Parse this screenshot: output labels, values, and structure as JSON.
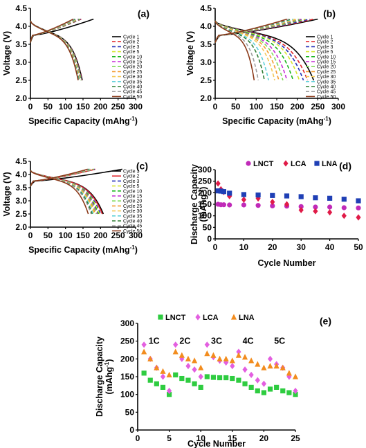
{
  "chart_data": [
    {
      "id": "a",
      "panel_label": "(a)",
      "type": "line",
      "xlabel": "Specific Capacity (mAhg",
      "xlabel_sup": "-1",
      "xlabel_end": ")",
      "ylabel": "Voltage (V)",
      "xlim": [
        0,
        300
      ],
      "ylim": [
        2.0,
        4.5
      ],
      "xticks": [
        "0",
        "50",
        "100",
        "150",
        "200",
        "250",
        "300"
      ],
      "yticks": [
        "2.0",
        "2.5",
        "3.0",
        "3.5",
        "4.0",
        "4.5"
      ],
      "charge_end_capacity": [
        180,
        145,
        143,
        141,
        139,
        137,
        135,
        133,
        131,
        129,
        127,
        125,
        122
      ],
      "discharge_capacity": [
        148,
        147,
        146,
        145,
        144,
        143,
        142,
        141,
        140,
        139,
        138,
        137,
        136
      ],
      "series": [
        {
          "name": "Cycle 1",
          "color": "#000000",
          "style": "solid"
        },
        {
          "name": "Cycle 2",
          "color": "#e0262b",
          "style": "dash"
        },
        {
          "name": "Cycle 3",
          "color": "#2431b8",
          "style": "dash"
        },
        {
          "name": "Cycle 5",
          "color": "#d6e632",
          "style": "dash"
        },
        {
          "name": "Cycle 10",
          "color": "#18b51b",
          "style": "dash"
        },
        {
          "name": "Cycle 15",
          "color": "#c62ad6",
          "style": "dash"
        },
        {
          "name": "Cycle 20",
          "color": "#7ed957",
          "style": "dash"
        },
        {
          "name": "Cycle 25",
          "color": "#f39b2e",
          "style": "dash"
        },
        {
          "name": "Cycle 30",
          "color": "#f4c95a",
          "style": "dash"
        },
        {
          "name": "Cycle 35",
          "color": "#5fd1d9",
          "style": "dash"
        },
        {
          "name": "Cycle 40",
          "color": "#2e7d32",
          "style": "dash"
        },
        {
          "name": "Cycle 45",
          "color": "#9e9e9e",
          "style": "dash"
        },
        {
          "name": "Cycle 50",
          "color": "#8b3a1a",
          "style": "solid"
        }
      ]
    },
    {
      "id": "b",
      "panel_label": "(b)",
      "type": "line",
      "xlabel": "Specific Capacity (mAhg",
      "xlabel_sup": "-1",
      "xlabel_end": ")",
      "ylabel": "Voltage (V)",
      "xlim": [
        0,
        300
      ],
      "ylim": [
        2.0,
        4.5
      ],
      "xticks": [
        "0",
        "50",
        "100",
        "150",
        "200",
        "250",
        "300"
      ],
      "yticks": [
        "2.0",
        "2.5",
        "3.0",
        "3.5",
        "4.0",
        "4.5"
      ],
      "charge_end_capacity": [
        250,
        240,
        230,
        220,
        215,
        210,
        205,
        200,
        195,
        190,
        185,
        180,
        175
      ],
      "discharge_capacity": [
        240,
        225,
        215,
        205,
        190,
        175,
        165,
        155,
        145,
        130,
        120,
        105,
        95
      ],
      "series": [
        {
          "name": "Cycle 1",
          "color": "#000000",
          "style": "solid"
        },
        {
          "name": "Cycle 2",
          "color": "#e0262b",
          "style": "dash"
        },
        {
          "name": "Cycle 3",
          "color": "#2431b8",
          "style": "dash"
        },
        {
          "name": "Cycle 5",
          "color": "#d6e632",
          "style": "dash"
        },
        {
          "name": "Cycle 10",
          "color": "#18b51b",
          "style": "dash"
        },
        {
          "name": "Cycle 15",
          "color": "#c62ad6",
          "style": "dash"
        },
        {
          "name": "Cycle 20",
          "color": "#7ed957",
          "style": "dash"
        },
        {
          "name": "Cycle 25",
          "color": "#f39b2e",
          "style": "dash"
        },
        {
          "name": "Cycle 30",
          "color": "#f4c95a",
          "style": "dash"
        },
        {
          "name": "Cycle 35",
          "color": "#5fd1d9",
          "style": "dash"
        },
        {
          "name": "Cycle 40",
          "color": "#2e7d32",
          "style": "dash"
        },
        {
          "name": "Cycle 45",
          "color": "#9e9e9e",
          "style": "dash"
        },
        {
          "name": "Cycle 50",
          "color": "#8b3a1a",
          "style": "solid"
        }
      ]
    },
    {
      "id": "c",
      "panel_label": "(c)",
      "type": "line",
      "xlabel": "Specific Capacity (mAhg",
      "xlabel_sup": "-1",
      "xlabel_end": ")",
      "ylabel": "Voltage (V)",
      "xlim": [
        0,
        300
      ],
      "ylim": [
        2.0,
        4.5
      ],
      "xticks": [
        "0",
        "50",
        "100",
        "150",
        "200",
        "250",
        "300"
      ],
      "yticks": [
        "2.0",
        "2.5",
        "3.0",
        "3.5",
        "4.0",
        "4.5"
      ],
      "charge_end_capacity": [
        262,
        185,
        183,
        181,
        179,
        177,
        175,
        173,
        171,
        169,
        167,
        165,
        163
      ],
      "discharge_capacity": [
        208,
        205,
        200,
        197,
        194,
        191,
        188,
        185,
        182,
        179,
        176,
        173,
        165
      ],
      "series": [
        {
          "name": "Cycle 1",
          "color": "#000000",
          "style": "solid"
        },
        {
          "name": "Cycle 2",
          "color": "#e0262b",
          "style": "solid"
        },
        {
          "name": "Cycle 3",
          "color": "#2431b8",
          "style": "dash"
        },
        {
          "name": "Cycle 5",
          "color": "#d6e632",
          "style": "dash"
        },
        {
          "name": "Cycle 10",
          "color": "#18b51b",
          "style": "dash"
        },
        {
          "name": "Cycle 15",
          "color": "#c62ad6",
          "style": "dash"
        },
        {
          "name": "Cycle 20",
          "color": "#7ed957",
          "style": "dash"
        },
        {
          "name": "Cycle 25",
          "color": "#f39b2e",
          "style": "dash"
        },
        {
          "name": "Cycle 30",
          "color": "#f4c95a",
          "style": "dash"
        },
        {
          "name": "Cycle 35",
          "color": "#5fd1d9",
          "style": "dash"
        },
        {
          "name": "Cycle 40",
          "color": "#2e7d32",
          "style": "dash"
        },
        {
          "name": "Cycle 45",
          "color": "#9e9e9e",
          "style": "dash"
        },
        {
          "name": "Cycle 50",
          "color": "#8b3a1a",
          "style": "solid"
        }
      ]
    },
    {
      "id": "d",
      "panel_label": "(d)",
      "type": "scatter",
      "xlabel": "Cycle Number",
      "ylabel": "Discharge Capacity",
      "ylabel2": "(mAhg",
      "ylabel2_sup": "-1",
      "ylabel2_end": ")",
      "xlim": [
        0,
        50
      ],
      "ylim": [
        0,
        300
      ],
      "xticks": [
        "0",
        "10",
        "20",
        "30",
        "40",
        "50"
      ],
      "yticks": [
        "0",
        "50",
        "100",
        "150",
        "200",
        "250",
        "300"
      ],
      "legend_position": "top",
      "series": [
        {
          "name": "LNCT",
          "marker": "circle",
          "color": "#c02ab8",
          "x": [
            1,
            2,
            3,
            5,
            10,
            15,
            20,
            25,
            30,
            35,
            40,
            45,
            50
          ],
          "y": [
            150,
            148,
            148,
            147,
            147,
            145,
            143,
            142,
            140,
            138,
            138,
            135,
            134
          ]
        },
        {
          "name": "LCA",
          "marker": "diamond",
          "color": "#e01b48",
          "x": [
            1,
            2,
            3,
            5,
            10,
            15,
            20,
            25,
            30,
            35,
            40,
            45,
            50
          ],
          "y": [
            240,
            215,
            203,
            185,
            170,
            175,
            160,
            150,
            125,
            120,
            115,
            100,
            93
          ]
        },
        {
          "name": "LNA",
          "marker": "square",
          "color": "#1f3fb5",
          "x": [
            1,
            2,
            3,
            5,
            10,
            15,
            20,
            25,
            30,
            35,
            40,
            45,
            50
          ],
          "y": [
            208,
            207,
            205,
            198,
            192,
            190,
            188,
            186,
            183,
            178,
            176,
            172,
            165
          ]
        }
      ]
    },
    {
      "id": "e",
      "panel_label": "(e)",
      "type": "scatter",
      "xlabel": "Cycle Number",
      "ylabel": "Discharge Capacity",
      "ylabel2": "(mAhg",
      "ylabel2_sup": "-1",
      "ylabel2_end": ")",
      "xlim": [
        0,
        25
      ],
      "ylim": [
        0,
        300
      ],
      "xticks": [
        "0",
        "5",
        "10",
        "15",
        "20",
        "25"
      ],
      "yticks": [
        "0",
        "50",
        "100",
        "150",
        "200",
        "250",
        "300"
      ],
      "legend_position": "top",
      "annotations": [
        {
          "text": "1C",
          "x": 2.6,
          "y": 250
        },
        {
          "text": "2C",
          "x": 7.5,
          "y": 250
        },
        {
          "text": "3C",
          "x": 12.5,
          "y": 250
        },
        {
          "text": "4C",
          "x": 17.5,
          "y": 250
        },
        {
          "text": "5C",
          "x": 22.5,
          "y": 250
        }
      ],
      "series": [
        {
          "name": "LNCT",
          "marker": "square",
          "color": "#2ecc40",
          "x": [
            1,
            2,
            3,
            4,
            5,
            6,
            7,
            8,
            9,
            10,
            11,
            12,
            13,
            14,
            15,
            16,
            17,
            18,
            19,
            20,
            21,
            22,
            23,
            24,
            25
          ],
          "y": [
            160,
            140,
            130,
            120,
            100,
            155,
            145,
            140,
            130,
            120,
            150,
            148,
            147,
            147,
            145,
            140,
            130,
            120,
            110,
            105,
            115,
            120,
            110,
            105,
            100
          ]
        },
        {
          "name": "LCA",
          "marker": "diamond",
          "color": "#e35fe0",
          "x": [
            1,
            2,
            3,
            4,
            5,
            6,
            7,
            8,
            9,
            10,
            11,
            12,
            13,
            14,
            15,
            16,
            17,
            18,
            19,
            20,
            21,
            22,
            23,
            24,
            25
          ],
          "y": [
            240,
            200,
            175,
            150,
            110,
            240,
            200,
            180,
            170,
            150,
            240,
            205,
            195,
            190,
            180,
            220,
            170,
            155,
            140,
            130,
            200,
            185,
            175,
            150,
            110
          ]
        },
        {
          "name": "LNA",
          "marker": "triangle",
          "color": "#f28c1e",
          "x": [
            1,
            2,
            3,
            4,
            5,
            6,
            7,
            8,
            9,
            10,
            11,
            12,
            13,
            14,
            15,
            16,
            17,
            18,
            19,
            20,
            21,
            22,
            23,
            24,
            25
          ],
          "y": [
            220,
            200,
            175,
            165,
            155,
            220,
            210,
            200,
            195,
            175,
            215,
            210,
            200,
            200,
            195,
            210,
            205,
            195,
            185,
            175,
            180,
            180,
            175,
            160,
            150
          ]
        }
      ]
    }
  ]
}
